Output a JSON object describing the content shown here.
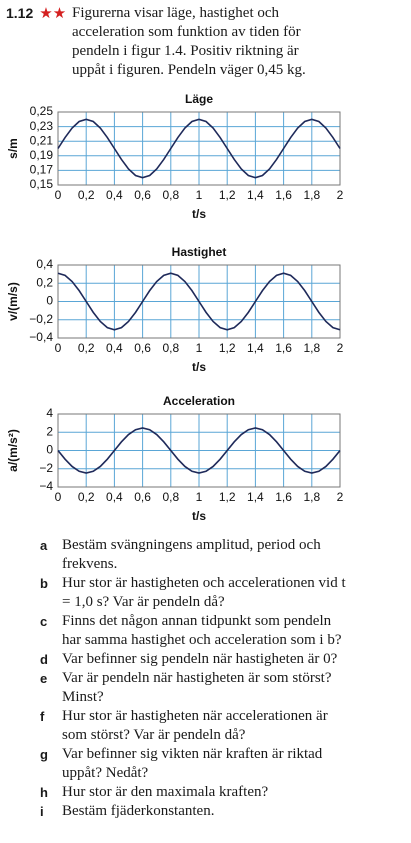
{
  "problem": {
    "number": "1.12",
    "stars": "★★",
    "text": "Figurerna visar läge, hastighet och acceleration som funktion av tiden för pendeln i figur 1.4. Positiv riktning är uppåt i figuren. Pendeln väger 0,45 kg."
  },
  "chart_data": [
    {
      "type": "line",
      "title": "Läge",
      "x_label": "t/s",
      "y_label": "s/m",
      "x": [
        0,
        0.05,
        0.1,
        0.15,
        0.2,
        0.25,
        0.3,
        0.35,
        0.4,
        0.45,
        0.5,
        0.55,
        0.6,
        0.65,
        0.7,
        0.75,
        0.8,
        0.85,
        0.9,
        0.95,
        1,
        1.05,
        1.1,
        1.15,
        1.2,
        1.25,
        1.3,
        1.35,
        1.4,
        1.45,
        1.5,
        1.55,
        1.6,
        1.65,
        1.7,
        1.75,
        1.8,
        1.85,
        1.9,
        1.95,
        2
      ],
      "series": [
        {
          "color": "#1f2a5a",
          "values": [
            0.2,
            0.215,
            0.228,
            0.237,
            0.24,
            0.237,
            0.228,
            0.215,
            0.2,
            0.185,
            0.172,
            0.163,
            0.16,
            0.163,
            0.172,
            0.185,
            0.2,
            0.215,
            0.228,
            0.237,
            0.24,
            0.237,
            0.228,
            0.215,
            0.2,
            0.185,
            0.172,
            0.163,
            0.16,
            0.163,
            0.172,
            0.185,
            0.2,
            0.215,
            0.228,
            0.237,
            0.24,
            0.237,
            0.228,
            0.215,
            0.2
          ]
        }
      ],
      "xlim": [
        0,
        2
      ],
      "ylim": [
        0.15,
        0.25
      ],
      "xticks": [
        0,
        {
          "value": 0.2,
          "label": "0,2"
        },
        {
          "value": 0.4,
          "label": "0,4"
        },
        {
          "value": 0.6,
          "label": "0,6"
        },
        {
          "value": 0.8,
          "label": "0,8"
        },
        1,
        {
          "value": 1.2,
          "label": "1,2"
        },
        {
          "value": 1.4,
          "label": "1,4"
        },
        {
          "value": 1.6,
          "label": "1,6"
        },
        {
          "value": 1.8,
          "label": "1,8"
        },
        2
      ],
      "yticks": [
        {
          "value": 0.15,
          "label": "0,15"
        },
        {
          "value": 0.17,
          "label": "0,17"
        },
        {
          "value": 0.19,
          "label": "0,19"
        },
        {
          "value": 0.21,
          "label": "0,21"
        },
        {
          "value": 0.23,
          "label": "0,23"
        },
        {
          "value": 0.25,
          "label": "0,25"
        }
      ],
      "grid": true,
      "grid_color": "#5aa6d6"
    },
    {
      "type": "line",
      "title": "Hastighet",
      "x_label": "t/s",
      "y_label": "v/(m/s)",
      "x": [
        0,
        0.05,
        0.1,
        0.15,
        0.2,
        0.25,
        0.3,
        0.35,
        0.4,
        0.45,
        0.5,
        0.55,
        0.6,
        0.65,
        0.7,
        0.75,
        0.8,
        0.85,
        0.9,
        0.95,
        1,
        1.05,
        1.1,
        1.15,
        1.2,
        1.25,
        1.3,
        1.35,
        1.4,
        1.45,
        1.5,
        1.55,
        1.6,
        1.65,
        1.7,
        1.75,
        1.8,
        1.85,
        1.9,
        1.95,
        2
      ],
      "series": [
        {
          "color": "#1f2a5a",
          "values": [
            0.31,
            0.286,
            0.219,
            0.119,
            0,
            -0.119,
            -0.219,
            -0.286,
            -0.31,
            -0.286,
            -0.219,
            -0.119,
            0,
            0.119,
            0.219,
            0.286,
            0.31,
            0.286,
            0.219,
            0.119,
            0,
            -0.119,
            -0.219,
            -0.286,
            -0.31,
            -0.286,
            -0.219,
            -0.119,
            0,
            0.119,
            0.219,
            0.286,
            0.31,
            0.286,
            0.219,
            0.119,
            0,
            -0.119,
            -0.219,
            -0.286,
            -0.31
          ]
        }
      ],
      "xlim": [
        0,
        2
      ],
      "ylim": [
        -0.4,
        0.4
      ],
      "xticks": [
        0,
        {
          "value": 0.2,
          "label": "0,2"
        },
        {
          "value": 0.4,
          "label": "0,4"
        },
        {
          "value": 0.6,
          "label": "0,6"
        },
        {
          "value": 0.8,
          "label": "0,8"
        },
        1,
        {
          "value": 1.2,
          "label": "1,2"
        },
        {
          "value": 1.4,
          "label": "1,4"
        },
        {
          "value": 1.6,
          "label": "1,6"
        },
        {
          "value": 1.8,
          "label": "1,8"
        },
        2
      ],
      "yticks": [
        {
          "value": -0.4,
          "label": "−0,4"
        },
        {
          "value": -0.2,
          "label": "−0,2"
        },
        0,
        {
          "value": 0.2,
          "label": "0,2"
        },
        {
          "value": 0.4,
          "label": "0,4"
        }
      ],
      "grid": true,
      "grid_color": "#5aa6d6"
    },
    {
      "type": "line",
      "title": "Acceleration",
      "x_label": "t/s",
      "y_label": "a/(m/s²)",
      "x": [
        0,
        0.05,
        0.1,
        0.15,
        0.2,
        0.25,
        0.3,
        0.35,
        0.4,
        0.45,
        0.5,
        0.55,
        0.6,
        0.65,
        0.7,
        0.75,
        0.8,
        0.85,
        0.9,
        0.95,
        1,
        1.05,
        1.1,
        1.15,
        1.2,
        1.25,
        1.3,
        1.35,
        1.4,
        1.45,
        1.5,
        1.55,
        1.6,
        1.65,
        1.7,
        1.75,
        1.8,
        1.85,
        1.9,
        1.95,
        2
      ],
      "series": [
        {
          "color": "#1f2a5a",
          "values": [
            0,
            -0.95,
            -1.75,
            -2.28,
            -2.47,
            -2.28,
            -1.75,
            -0.95,
            0,
            0.95,
            1.75,
            2.28,
            2.47,
            2.28,
            1.75,
            0.95,
            0,
            -0.95,
            -1.75,
            -2.28,
            -2.47,
            -2.28,
            -1.75,
            -0.95,
            0,
            0.95,
            1.75,
            2.28,
            2.47,
            2.28,
            1.75,
            0.95,
            0,
            -0.95,
            -1.75,
            -2.28,
            -2.47,
            -2.28,
            -1.75,
            -0.95,
            0
          ]
        }
      ],
      "xlim": [
        0,
        2
      ],
      "ylim": [
        -4,
        4
      ],
      "xticks": [
        0,
        {
          "value": 0.2,
          "label": "0,2"
        },
        {
          "value": 0.4,
          "label": "0,4"
        },
        {
          "value": 0.6,
          "label": "0,6"
        },
        {
          "value": 0.8,
          "label": "0,8"
        },
        1,
        {
          "value": 1.2,
          "label": "1,2"
        },
        {
          "value": 1.4,
          "label": "1,4"
        },
        {
          "value": 1.6,
          "label": "1,6"
        },
        {
          "value": 1.8,
          "label": "1,8"
        },
        2
      ],
      "yticks": [
        {
          "value": -4,
          "label": "−4"
        },
        {
          "value": -2,
          "label": "−2"
        },
        0,
        2,
        4
      ],
      "grid": true,
      "grid_color": "#5aa6d6"
    }
  ],
  "questions": [
    {
      "letter": "a",
      "text": "Bestäm svängningens amplitud, period och frekvens."
    },
    {
      "letter": "b",
      "text": "Hur stor är hastigheten och accelerationen vid t = 1,0 s? Var är pendeln då?"
    },
    {
      "letter": "c",
      "text": "Finns det någon annan tidpunkt som pendeln har samma hastighet och acceleration som i b?"
    },
    {
      "letter": "d",
      "text": "Var befinner sig pendeln när hastigheten är 0?"
    },
    {
      "letter": "e",
      "text": "Var är pendeln när hastigheten är som störst? Minst?"
    },
    {
      "letter": "f",
      "text": "Hur stor är hastigheten när accelerationen är som störst? Var är pendeln då?"
    },
    {
      "letter": "g",
      "text": "Var befinner sig vikten när kraften är riktad uppåt? Nedåt?"
    },
    {
      "letter": "h",
      "text": "Hur stor är den maximala kraften?"
    },
    {
      "letter": "i",
      "text": "Bestäm fjäderkonstanten."
    }
  ]
}
